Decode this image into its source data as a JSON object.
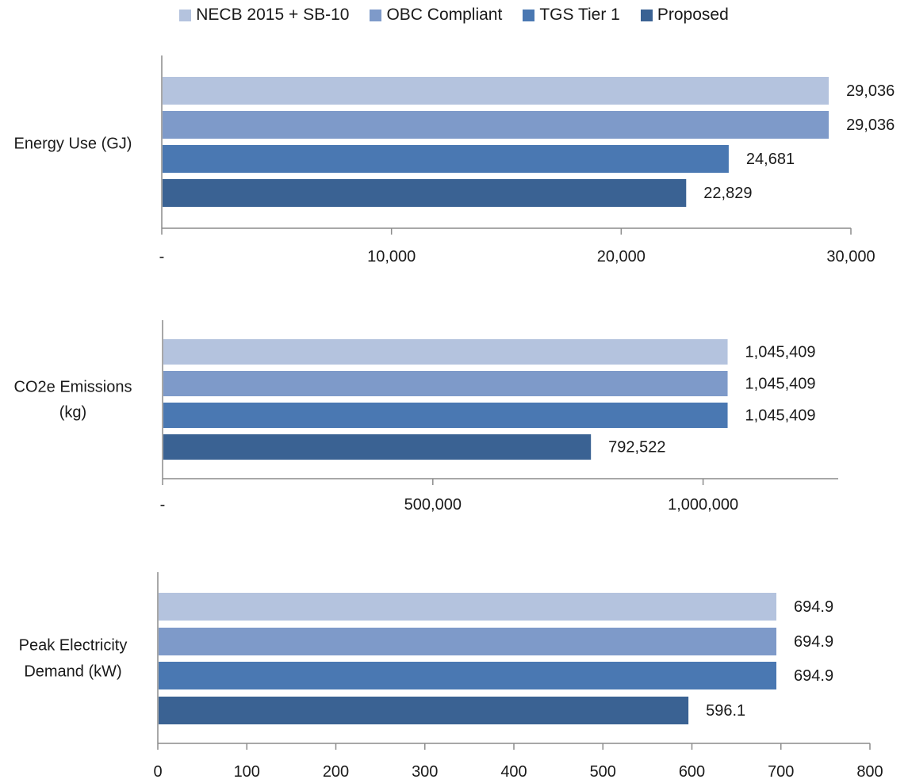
{
  "legend": [
    {
      "name": "NECB 2015 + SB-10",
      "color": "#b4c3de"
    },
    {
      "name": "OBC Compliant",
      "color": "#7e9ac9"
    },
    {
      "name": "TGS Tier 1",
      "color": "#4a78b2"
    },
    {
      "name": "Proposed",
      "color": "#3a6293"
    }
  ],
  "chart_data": [
    {
      "type": "bar",
      "orientation": "horizontal",
      "category": [
        "Energy Use (GJ)"
      ],
      "series": [
        {
          "name": "NECB 2015 + SB-10",
          "value": 29036,
          "label": "29,036"
        },
        {
          "name": "OBC Compliant",
          "value": 29036,
          "label": "29,036"
        },
        {
          "name": "TGS Tier 1",
          "value": 24681,
          "label": "24,681"
        },
        {
          "name": "Proposed",
          "value": 22829,
          "label": "22,829"
        }
      ],
      "xlim": [
        0,
        30000
      ],
      "ticks": [
        0,
        10000,
        20000,
        30000
      ],
      "tick_labels": [
        "-",
        "10,000",
        "20,000",
        "30,000"
      ],
      "grid": false
    },
    {
      "type": "bar",
      "orientation": "horizontal",
      "category": [
        "CO2e Emissions",
        "(kg)"
      ],
      "series": [
        {
          "name": "NECB 2015 + SB-10",
          "value": 1045409,
          "label": "1,045,409"
        },
        {
          "name": "OBC Compliant",
          "value": 1045409,
          "label": "1,045,409"
        },
        {
          "name": "TGS Tier 1",
          "value": 1045409,
          "label": "1,045,409"
        },
        {
          "name": "Proposed",
          "value": 792522,
          "label": "792,522"
        }
      ],
      "xlim": [
        0,
        1250000
      ],
      "ticks": [
        0,
        500000,
        1000000
      ],
      "tick_labels": [
        "-",
        "500,000",
        "1,000,000"
      ],
      "grid": false
    },
    {
      "type": "bar",
      "orientation": "horizontal",
      "category": [
        "Peak Electricity",
        "Demand (kW)"
      ],
      "series": [
        {
          "name": "NECB 2015 + SB-10",
          "value": 694.9,
          "label": "694.9"
        },
        {
          "name": "OBC Compliant",
          "value": 694.9,
          "label": "694.9"
        },
        {
          "name": "TGS Tier 1",
          "value": 694.9,
          "label": "694.9"
        },
        {
          "name": "Proposed",
          "value": 596.1,
          "label": "596.1"
        }
      ],
      "xlim": [
        0,
        800
      ],
      "ticks": [
        0,
        100,
        200,
        300,
        400,
        500,
        600,
        700,
        800
      ],
      "tick_labels": [
        "0",
        "100",
        "200",
        "300",
        "400",
        "500",
        "600",
        "700",
        "800"
      ],
      "grid": false
    }
  ]
}
